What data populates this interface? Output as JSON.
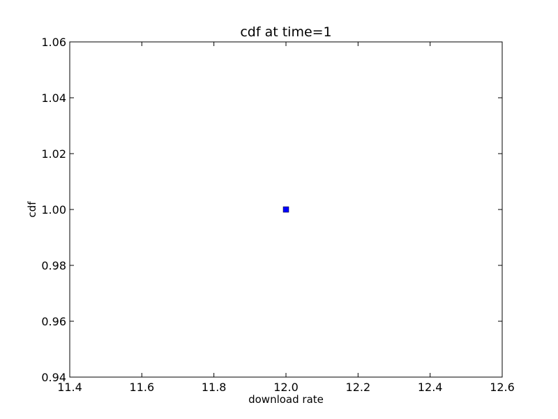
{
  "chart_data": {
    "type": "scatter",
    "title": "cdf at time=1",
    "xlabel": "download rate",
    "ylabel": "cdf",
    "xlim": [
      11.4,
      12.6
    ],
    "ylim": [
      0.94,
      1.06
    ],
    "xticks": [
      "11.4",
      "11.6",
      "11.8",
      "12.0",
      "12.2",
      "12.4",
      "12.6"
    ],
    "yticks": [
      "0.94",
      "0.96",
      "0.98",
      "1.00",
      "1.02",
      "1.04",
      "1.06"
    ],
    "grid": false,
    "series": [
      {
        "color": "#0000ff",
        "marker": "square",
        "points": [
          {
            "x": 12.0,
            "y": 1.0
          }
        ]
      }
    ]
  }
}
